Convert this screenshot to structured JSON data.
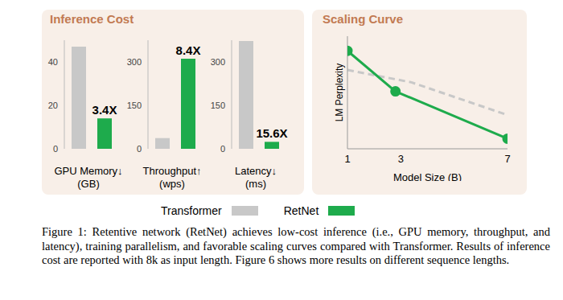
{
  "chart_data": [
    {
      "type": "bar",
      "title": "Inference Cost",
      "xlabel": "GPU Memory↓\n(GB)",
      "annotation": "3.4X",
      "categories": [
        null
      ],
      "ylim": [
        0,
        50
      ],
      "yticks": [
        0,
        20,
        40
      ],
      "tick_labels": "y",
      "legend": "bottom",
      "series": [
        {
          "name": "Transformer",
          "color": "#c8c8c8",
          "values": [
            47
          ]
        },
        {
          "name": "RetNet",
          "color": "#1eab4c",
          "values": [
            14
          ]
        }
      ]
    },
    {
      "type": "bar",
      "xlabel": "Throughput↑\n(wps)",
      "annotation": "8.4X",
      "categories": [
        null
      ],
      "ylim": [
        0,
        375
      ],
      "yticks": [
        0,
        150,
        300
      ],
      "tick_labels": "y",
      "series": [
        {
          "name": "Transformer",
          "color": "#c8c8c8",
          "values": [
            37
          ]
        },
        {
          "name": "RetNet",
          "color": "#1eab4c",
          "values": [
            311
          ]
        }
      ]
    },
    {
      "type": "bar",
      "xlabel": "Latency↓\n(ms)",
      "annotation": "15.6X",
      "categories": [
        null
      ],
      "ylim": [
        0,
        375
      ],
      "yticks": [
        0,
        150,
        300
      ],
      "tick_labels": "y",
      "series": [
        {
          "name": "Transformer",
          "color": "#c8c8c8",
          "values": [
            372
          ]
        },
        {
          "name": "RetNet",
          "color": "#1eab4c",
          "values": [
            24
          ]
        }
      ]
    },
    {
      "type": "line",
      "title": "Scaling Curve",
      "xlabel": "Model Size (B)",
      "ylabel": "LM Perplexity",
      "xlim": [
        1,
        7
      ],
      "xticks": [
        1,
        3,
        7
      ],
      "ylim": [
        0,
        10
      ],
      "yticks": [],
      "tick_labels": "x",
      "series": [
        {
          "name": "Transformer",
          "color": "#c8c8c8",
          "line_style": "dashed",
          "marker": "none",
          "x": [
            1,
            3.4,
            7
          ],
          "values": [
            7.0,
            5.9,
            3.0
          ]
        },
        {
          "name": "RetNet",
          "color": "#1eab4c",
          "line_style": "solid",
          "marker": "circle",
          "x": [
            1,
            2.8,
            7
          ],
          "values": [
            8.7,
            5.1,
            0.9
          ]
        }
      ]
    }
  ],
  "caption": "Figure 1: Retentive network (RetNet) achieves low-cost inference (i.e., GPU memory, throughput, and latency), training parallelism, and favorable scaling curves compared with Transformer. Results of inference cost are reported with 8k as input length. Figure 6 shows more results on different sequence lengths."
}
